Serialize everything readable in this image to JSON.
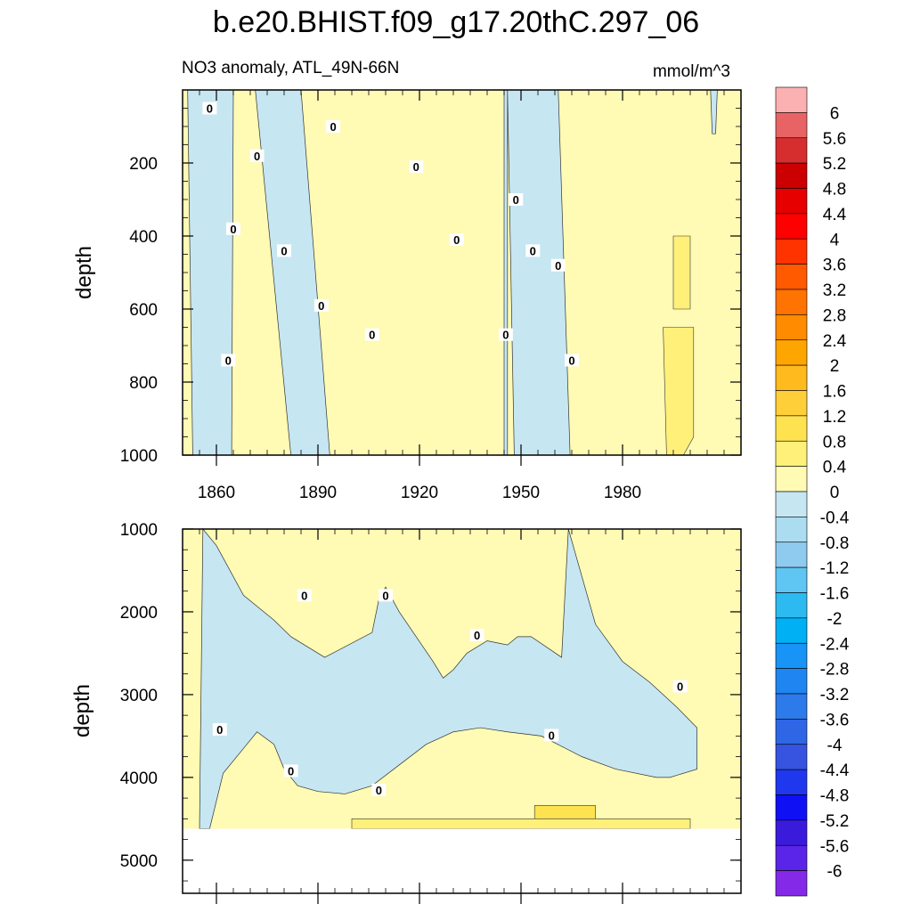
{
  "page_title": "b.e20.BHIST.f09_g17.20thC.297_06",
  "chart_data": {
    "type": "heatmap",
    "title": "b.e20.BHIST.f09_g17.20thC.297_06",
    "subtitle": "NO3 anomaly, ATL_49N-66N",
    "units": "mmol/m^3",
    "xlabel": "",
    "ylabel": "depth",
    "x_range": [
      1850,
      2015
    ],
    "x_ticks": [
      "1860",
      "1890",
      "1920",
      "1950",
      "1980"
    ],
    "panels": [
      {
        "name": "upper",
        "ylim": [
          0,
          1000
        ],
        "y_ticks": [
          "200",
          "400",
          "600",
          "800",
          "1000"
        ],
        "negative_bands": [
          {
            "x0": 1851.5,
            "x1": 1865,
            "ytop": 0,
            "x0b": 1853,
            "x1b": 1864.5,
            "ybot": 1000
          },
          {
            "x0": 1871.5,
            "x1": 1885,
            "ytop": 0,
            "x0b": 1882,
            "x1b": 1893.5,
            "ybot": 1000
          },
          {
            "x0": 1945,
            "x1": 1946,
            "ytop": 0,
            "x0b": 1945,
            "x1b": 1946,
            "ybot": 1000
          },
          {
            "x0": 1946,
            "x1": 1961,
            "ytop": 0,
            "x0b": 1948,
            "x1b": 1964.5,
            "ybot": 1000
          },
          {
            "x0": 2006,
            "x1": 2008,
            "ytop": 0,
            "x0b": 2006.5,
            "x1b": 2007.5,
            "ybot": 120
          }
        ],
        "positive_patches": [
          {
            "x": [
              1992,
              2001,
              2001,
              1998,
              1993
            ],
            "y": [
              650,
              650,
              950,
              1000,
              1000
            ],
            "level": 0.4
          },
          {
            "x": [
              1995,
              2000,
              2000,
              1995
            ],
            "y": [
              400,
              400,
              600,
              600
            ],
            "level": 0.4
          }
        ],
        "zero_labels": [
          {
            "x": 1858,
            "y": 50
          },
          {
            "x": 1872,
            "y": 180
          },
          {
            "x": 1865,
            "y": 380
          },
          {
            "x": 1863.5,
            "y": 740
          },
          {
            "x": 1880,
            "y": 440
          },
          {
            "x": 1894.5,
            "y": 100
          },
          {
            "x": 1891,
            "y": 590
          },
          {
            "x": 1919,
            "y": 210
          },
          {
            "x": 1906,
            "y": 670
          },
          {
            "x": 1931,
            "y": 410
          },
          {
            "x": 1945.5,
            "y": 670
          },
          {
            "x": 1948.5,
            "y": 300
          },
          {
            "x": 1953.5,
            "y": 440
          },
          {
            "x": 1961,
            "y": 480
          },
          {
            "x": 1965,
            "y": 740
          }
        ]
      },
      {
        "name": "lower",
        "ylim": [
          1000,
          5400
        ],
        "y_ticks": [
          "1000",
          "2000",
          "3000",
          "4000",
          "5000"
        ],
        "data_bottom": 4620,
        "negative_region": {
          "x": [
            1856,
            1860,
            1868,
            1877,
            1882,
            1892,
            1906,
            1908,
            1910,
            1914,
            1924,
            1927,
            1930,
            1934,
            1940,
            1946,
            1949,
            1953,
            1962,
            1964,
            1972,
            1980,
            1988,
            1996,
            2002,
            2002,
            1994,
            1990,
            1978,
            1968,
            1956,
            1946,
            1938,
            1930,
            1922,
            1914,
            1906,
            1898,
            1890,
            1884,
            1880,
            1877,
            1872,
            1869,
            1862,
            1858,
            1855,
            1856
          ],
          "y": [
            1000,
            1200,
            1800,
            2100,
            2300,
            2550,
            2250,
            1850,
            1700,
            2000,
            2600,
            2800,
            2700,
            2500,
            2350,
            2400,
            2300,
            2300,
            2550,
            1000,
            2150,
            2600,
            2850,
            3150,
            3400,
            3900,
            4000,
            4000,
            3900,
            3750,
            3500,
            3450,
            3400,
            3450,
            3600,
            3850,
            4100,
            4200,
            4170,
            4100,
            3900,
            3600,
            3450,
            3600,
            3950,
            4620,
            4620,
            1000
          ]
        },
        "positive_patches": [
          {
            "x": [
              1954,
              1972,
              1972,
              1954
            ],
            "y": [
              4340,
              4340,
              4620,
              4620
            ],
            "level": 0.8
          },
          {
            "x": [
              1900,
              2000,
              2000,
              1900
            ],
            "y": [
              4500,
              4500,
              4620,
              4620
            ],
            "level": 0.4
          }
        ],
        "zero_labels": [
          {
            "x": 1886,
            "y": 1800
          },
          {
            "x": 1910,
            "y": 1800
          },
          {
            "x": 1937,
            "y": 2280
          },
          {
            "x": 1997,
            "y": 2900
          },
          {
            "x": 1861,
            "y": 3420
          },
          {
            "x": 1882,
            "y": 3920
          },
          {
            "x": 1908,
            "y": 4150
          },
          {
            "x": 1959,
            "y": 3490
          }
        ]
      }
    ],
    "colorbar": {
      "labels": [
        "6",
        "5.6",
        "5.2",
        "4.8",
        "4.4",
        "4",
        "3.6",
        "3.2",
        "2.8",
        "2.4",
        "2",
        "1.6",
        "1.2",
        "0.8",
        "0.4",
        "0",
        "-0.4",
        "-0.8",
        "-1.2",
        "-1.6",
        "-2",
        "-2.4",
        "-2.8",
        "-3.2",
        "-3.6",
        "-4",
        "-4.4",
        "-4.8",
        "-5.2",
        "-5.6",
        "-6"
      ],
      "colors": [
        "#fbb1b1",
        "#e86464",
        "#d62e2e",
        "#cc0000",
        "#e60000",
        "#ff0000",
        "#ff3300",
        "#ff5a00",
        "#ff7300",
        "#ff8c00",
        "#ffa500",
        "#ffba1e",
        "#ffcf3a",
        "#ffe24f",
        "#fff07a",
        "#fffab4",
        "#c6e6f2",
        "#abdcf0",
        "#8ecbee",
        "#5fc5f2",
        "#2cbaf0",
        "#00b0f5",
        "#1893f6",
        "#1f85f0",
        "#2d7aeb",
        "#2f66e6",
        "#3654e0",
        "#1f38ee",
        "#1010f5",
        "#3b1bdb",
        "#5a25e8",
        "#8529e8"
      ]
    },
    "zero_label_text": "0",
    "colors": {
      "positive_low": "#fffab4",
      "positive_mid": "#fff07a",
      "positive_high": "#ffe24f",
      "negative_low": "#c6e6f2",
      "contour": "#333333"
    }
  }
}
